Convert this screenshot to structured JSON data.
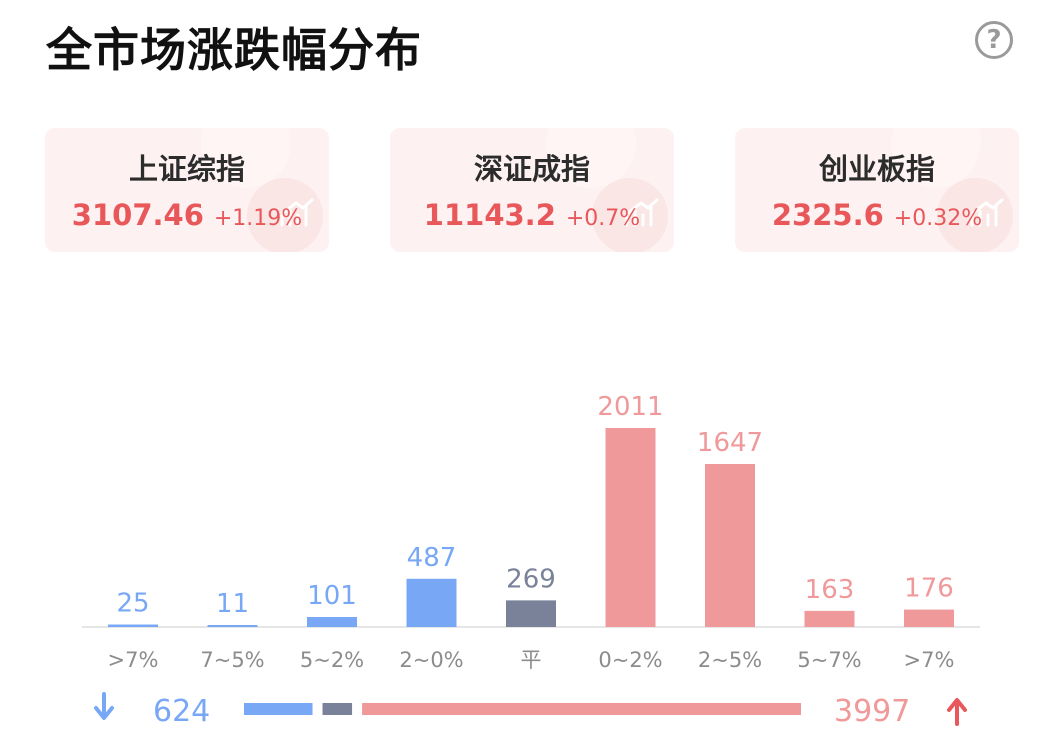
{
  "page": {
    "title": "全市场涨跌幅分布"
  },
  "help": {
    "label": "?"
  },
  "indices": [
    {
      "name": "上证综指",
      "value": "3107.46",
      "change": "+1.19%"
    },
    {
      "name": "深证成指",
      "value": "11143.2",
      "change": "+0.7%"
    },
    {
      "name": "创业板指",
      "value": "2325.6",
      "change": "+0.32%"
    }
  ],
  "colors": {
    "down": "#78a8f5",
    "flat": "#7a829a",
    "up": "#f0999a",
    "up_text": "#e8585a"
  },
  "chart_data": {
    "type": "bar",
    "categories": [
      ">7%",
      "7~5%",
      "5~2%",
      "2~0%",
      "平",
      "0~2%",
      "2~5%",
      "5~7%",
      ">7%"
    ],
    "values": [
      25,
      11,
      101,
      487,
      269,
      2011,
      1647,
      163,
      176
    ],
    "groups": [
      "down",
      "down",
      "down",
      "down",
      "flat",
      "up",
      "up",
      "up",
      "up"
    ],
    "title": "",
    "xlabel": "",
    "ylabel": "",
    "ylim": [
      0,
      2011
    ],
    "grid": false,
    "summary": {
      "down_total": 624,
      "up_total": 3997
    }
  }
}
